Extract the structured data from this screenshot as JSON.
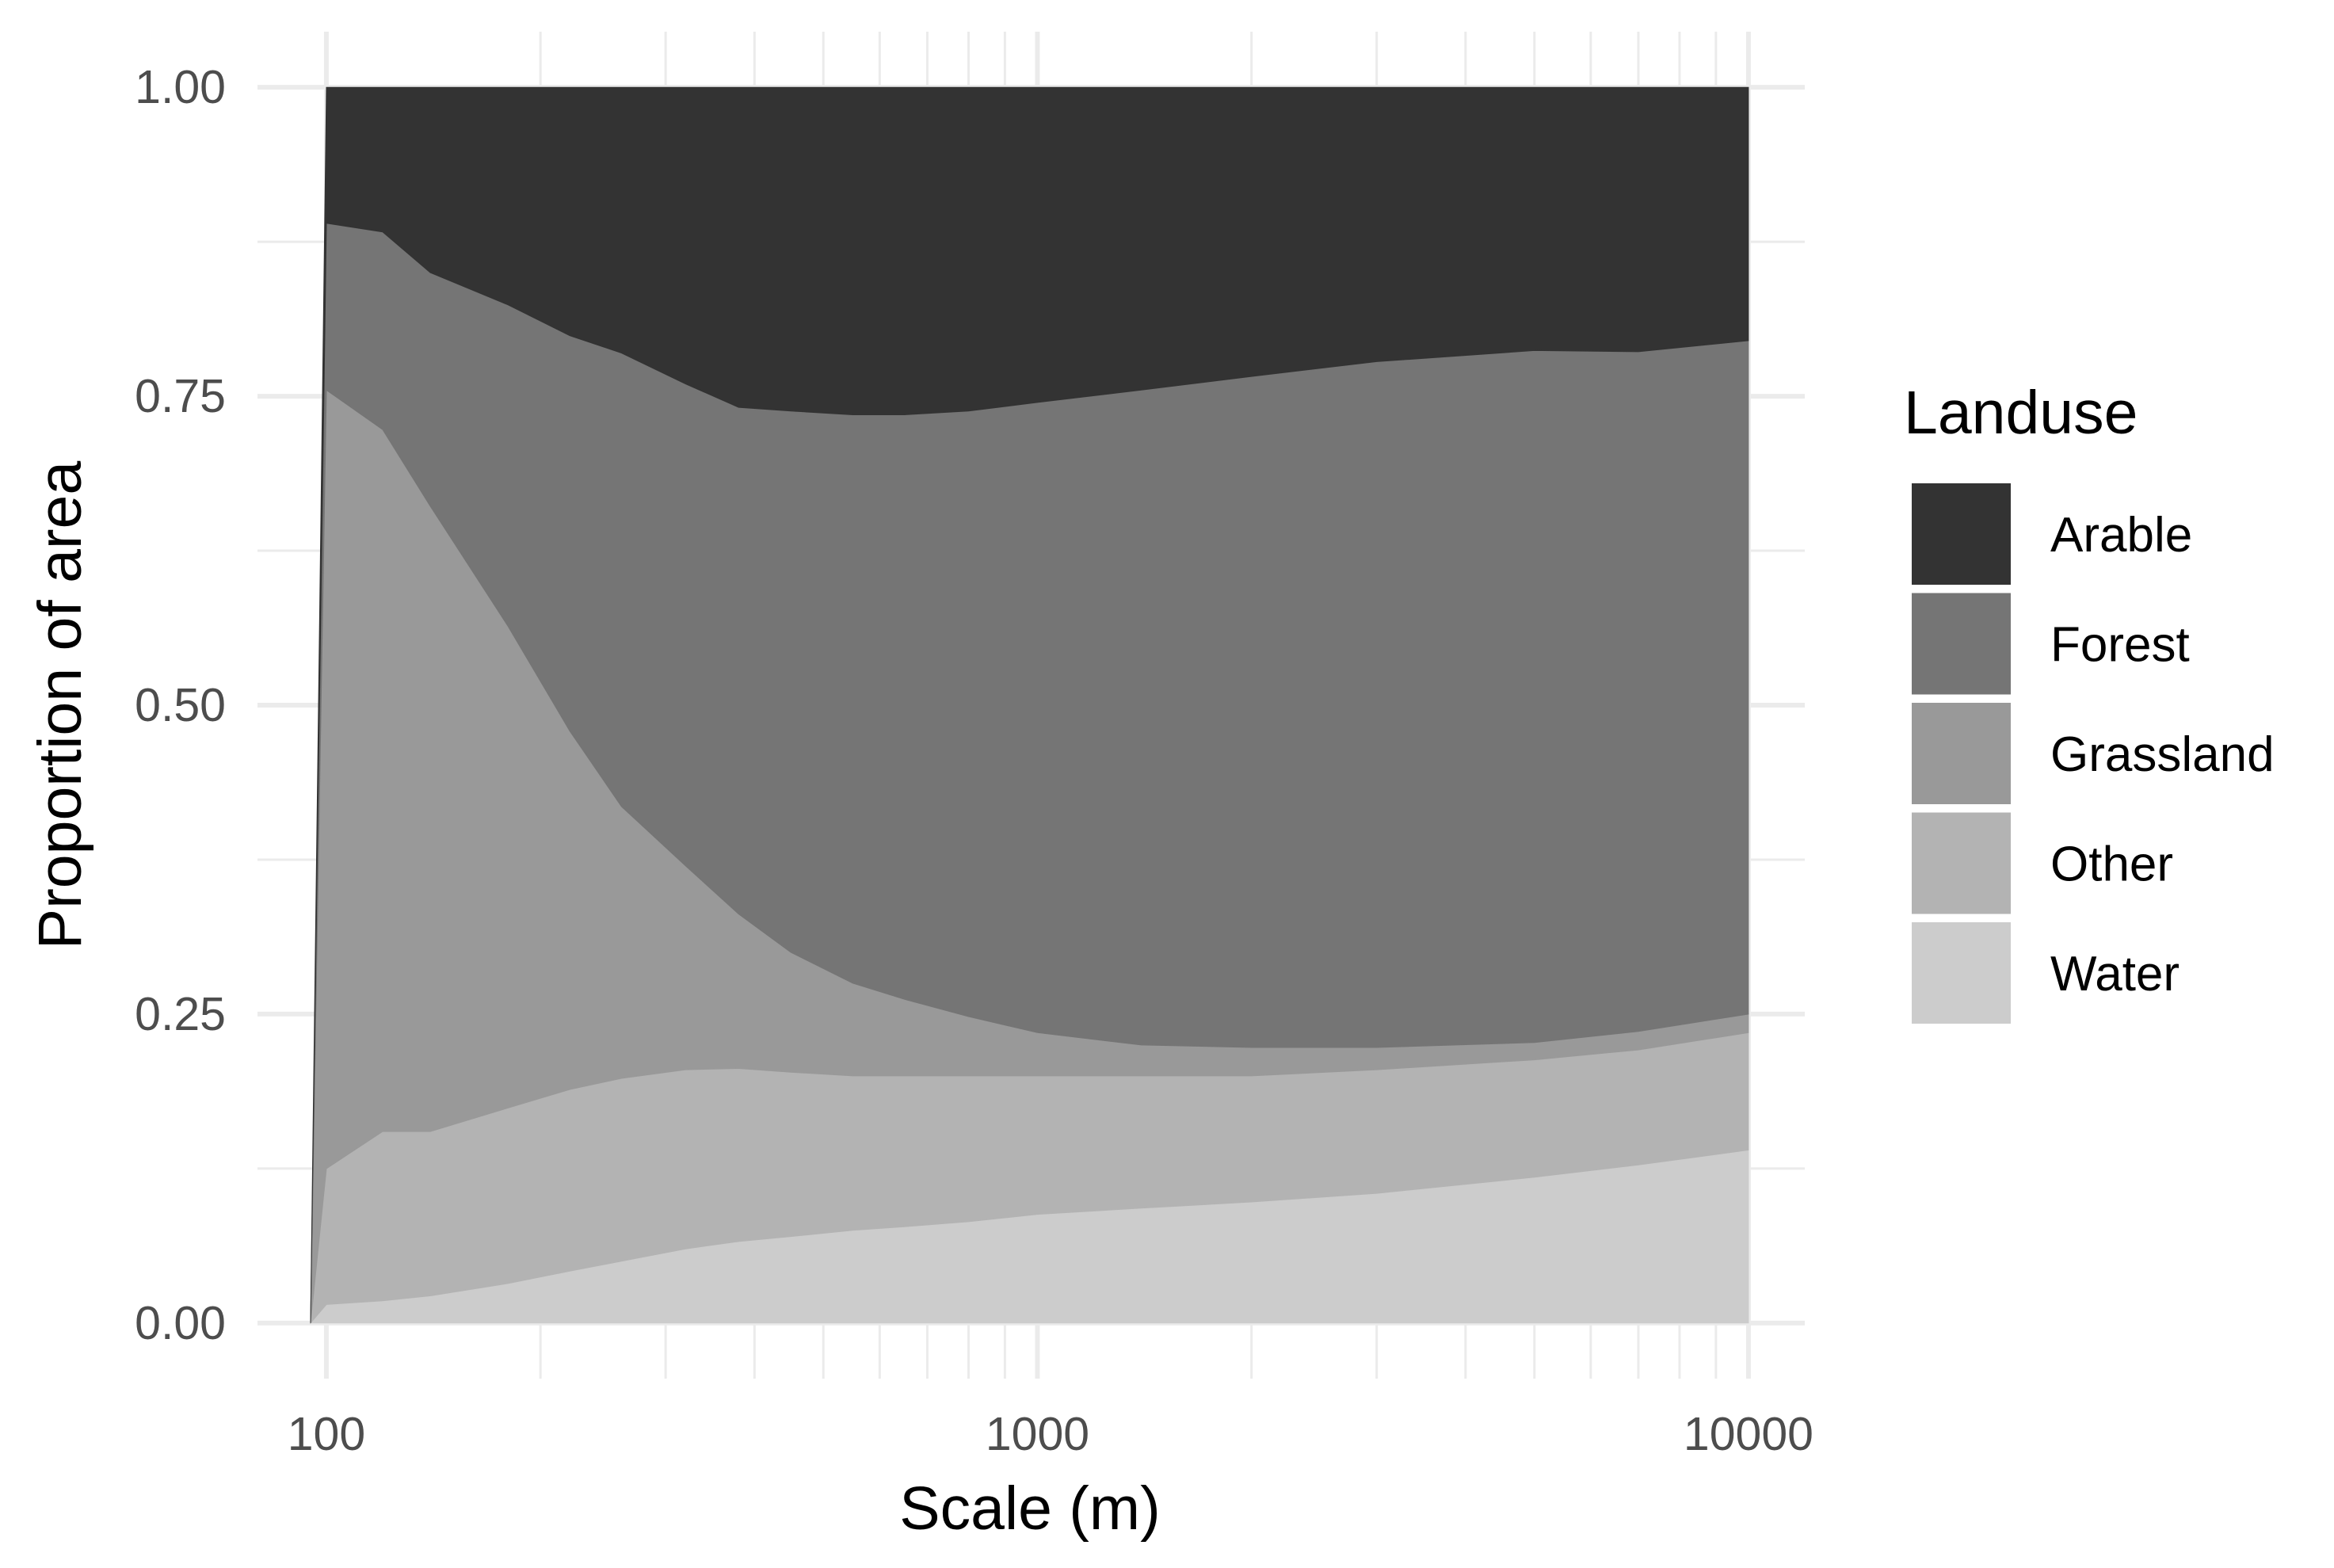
{
  "chart_data": {
    "type": "area",
    "stacked": true,
    "xscale": "log",
    "xlabel": "Scale (m)",
    "ylabel": "Proportion of area",
    "xlim": [
      80,
      12000
    ],
    "ylim": [
      -0.045,
      1.045
    ],
    "xticks": [
      100,
      1000,
      10000
    ],
    "xtick_labels": [
      "100",
      "1000",
      "10000"
    ],
    "yticks": [
      0,
      0.25,
      0.5,
      0.75,
      1.0
    ],
    "ytick_labels": [
      "0.00",
      "0.25",
      "0.50",
      "0.75",
      "1.00"
    ],
    "grid": true,
    "legend": {
      "title": "Landuse",
      "position": "right"
    },
    "x": [
      95,
      100,
      120,
      140,
      180,
      220,
      260,
      320,
      380,
      450,
      550,
      650,
      800,
      1000,
      1400,
      2000,
      3000,
      5000,
      7000,
      10000
    ],
    "series": [
      {
        "name": "Water",
        "color": "#cccccc",
        "values": [
          0.0,
          0.015,
          0.018,
          0.022,
          0.032,
          0.042,
          0.05,
          0.06,
          0.066,
          0.07,
          0.075,
          0.078,
          0.082,
          0.088,
          0.093,
          0.098,
          0.105,
          0.118,
          0.128,
          0.14
        ]
      },
      {
        "name": "Other",
        "color": "#b3b3b3",
        "values": [
          0.0,
          0.11,
          0.137,
          0.133,
          0.142,
          0.147,
          0.148,
          0.145,
          0.14,
          0.133,
          0.125,
          0.122,
          0.118,
          0.112,
          0.107,
          0.102,
          0.1,
          0.095,
          0.093,
          0.095
        ]
      },
      {
        "name": "Grassland",
        "color": "#999999",
        "values": [
          0.0,
          0.63,
          0.568,
          0.506,
          0.39,
          0.29,
          0.22,
          0.165,
          0.125,
          0.097,
          0.075,
          0.062,
          0.048,
          0.035,
          0.025,
          0.023,
          0.018,
          0.014,
          0.015,
          0.015
        ]
      },
      {
        "name": "Forest",
        "color": "#757575",
        "values": [
          0.0,
          0.135,
          0.16,
          0.189,
          0.26,
          0.32,
          0.367,
          0.39,
          0.41,
          0.438,
          0.46,
          0.473,
          0.49,
          0.51,
          0.53,
          0.543,
          0.555,
          0.56,
          0.55,
          0.545
        ]
      },
      {
        "name": "Arable",
        "color": "#333333",
        "values": [
          0.0,
          0.11,
          0.117,
          0.15,
          0.176,
          0.201,
          0.215,
          0.24,
          0.259,
          0.262,
          0.265,
          0.265,
          0.262,
          0.255,
          0.245,
          0.234,
          0.222,
          0.213,
          0.214,
          0.205
        ]
      }
    ],
    "legend_order": [
      "Arable",
      "Forest",
      "Grassland",
      "Other",
      "Water"
    ]
  }
}
